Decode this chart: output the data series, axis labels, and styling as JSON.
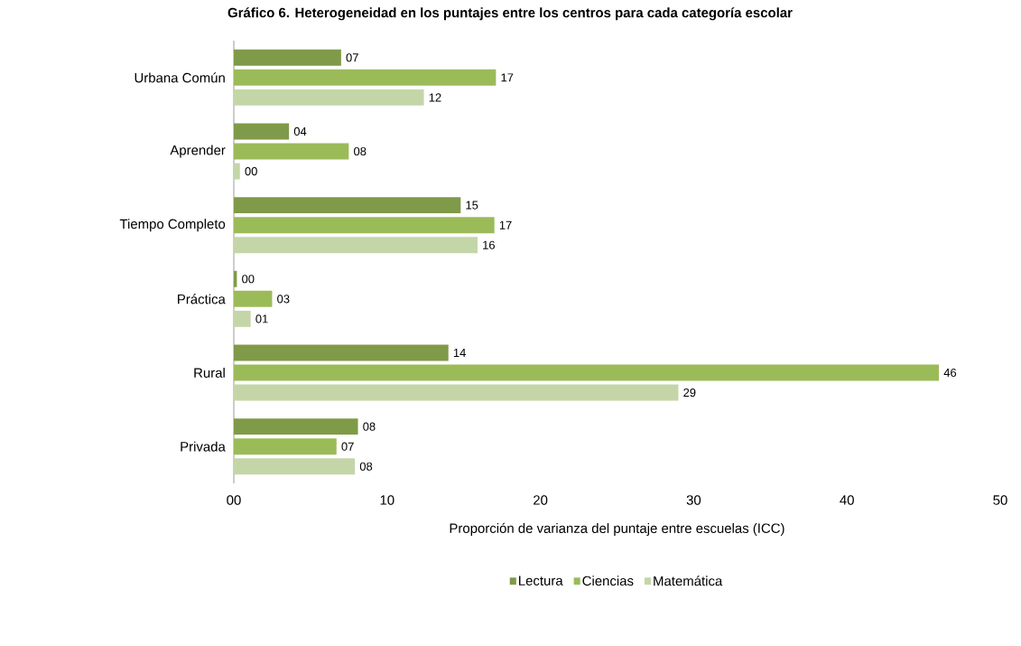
{
  "chart_data": {
    "type": "bar",
    "orientation": "horizontal",
    "title": "Gráfico 6. Heterogeneidad en los puntajes entre los centros para cada categoría escolar",
    "xlabel": "Proporción de varianza del puntaje entre escuelas (ICC)",
    "categories": [
      "Urbana Común",
      "Aprender",
      "Tiempo Completo",
      "Práctica",
      "Rural",
      "Privada"
    ],
    "series": [
      {
        "name": "Lectura",
        "color": "#7f9a48",
        "values": [
          7.0,
          3.6,
          14.8,
          0.2,
          14.0,
          8.1
        ],
        "value_labels": [
          "07",
          "04",
          "15",
          "00",
          "14",
          "08"
        ]
      },
      {
        "name": "Ciencias",
        "color": "#9bbb59",
        "values": [
          17.1,
          7.5,
          17.0,
          2.5,
          46.0,
          6.7
        ],
        "value_labels": [
          "17",
          "08",
          "17",
          "03",
          "46",
          "07"
        ]
      },
      {
        "name": "Matemática",
        "color": "#c4d6a8",
        "values": [
          12.4,
          0.4,
          15.9,
          1.1,
          29.0,
          7.9
        ],
        "value_labels": [
          "12",
          "00",
          "16",
          "01",
          "29",
          "08"
        ]
      }
    ],
    "xlim": [
      0,
      50
    ],
    "xticks": [
      {
        "value": 0,
        "label": "00"
      },
      10,
      20,
      30,
      40,
      50
    ],
    "grid": false,
    "legend": "bottom"
  }
}
